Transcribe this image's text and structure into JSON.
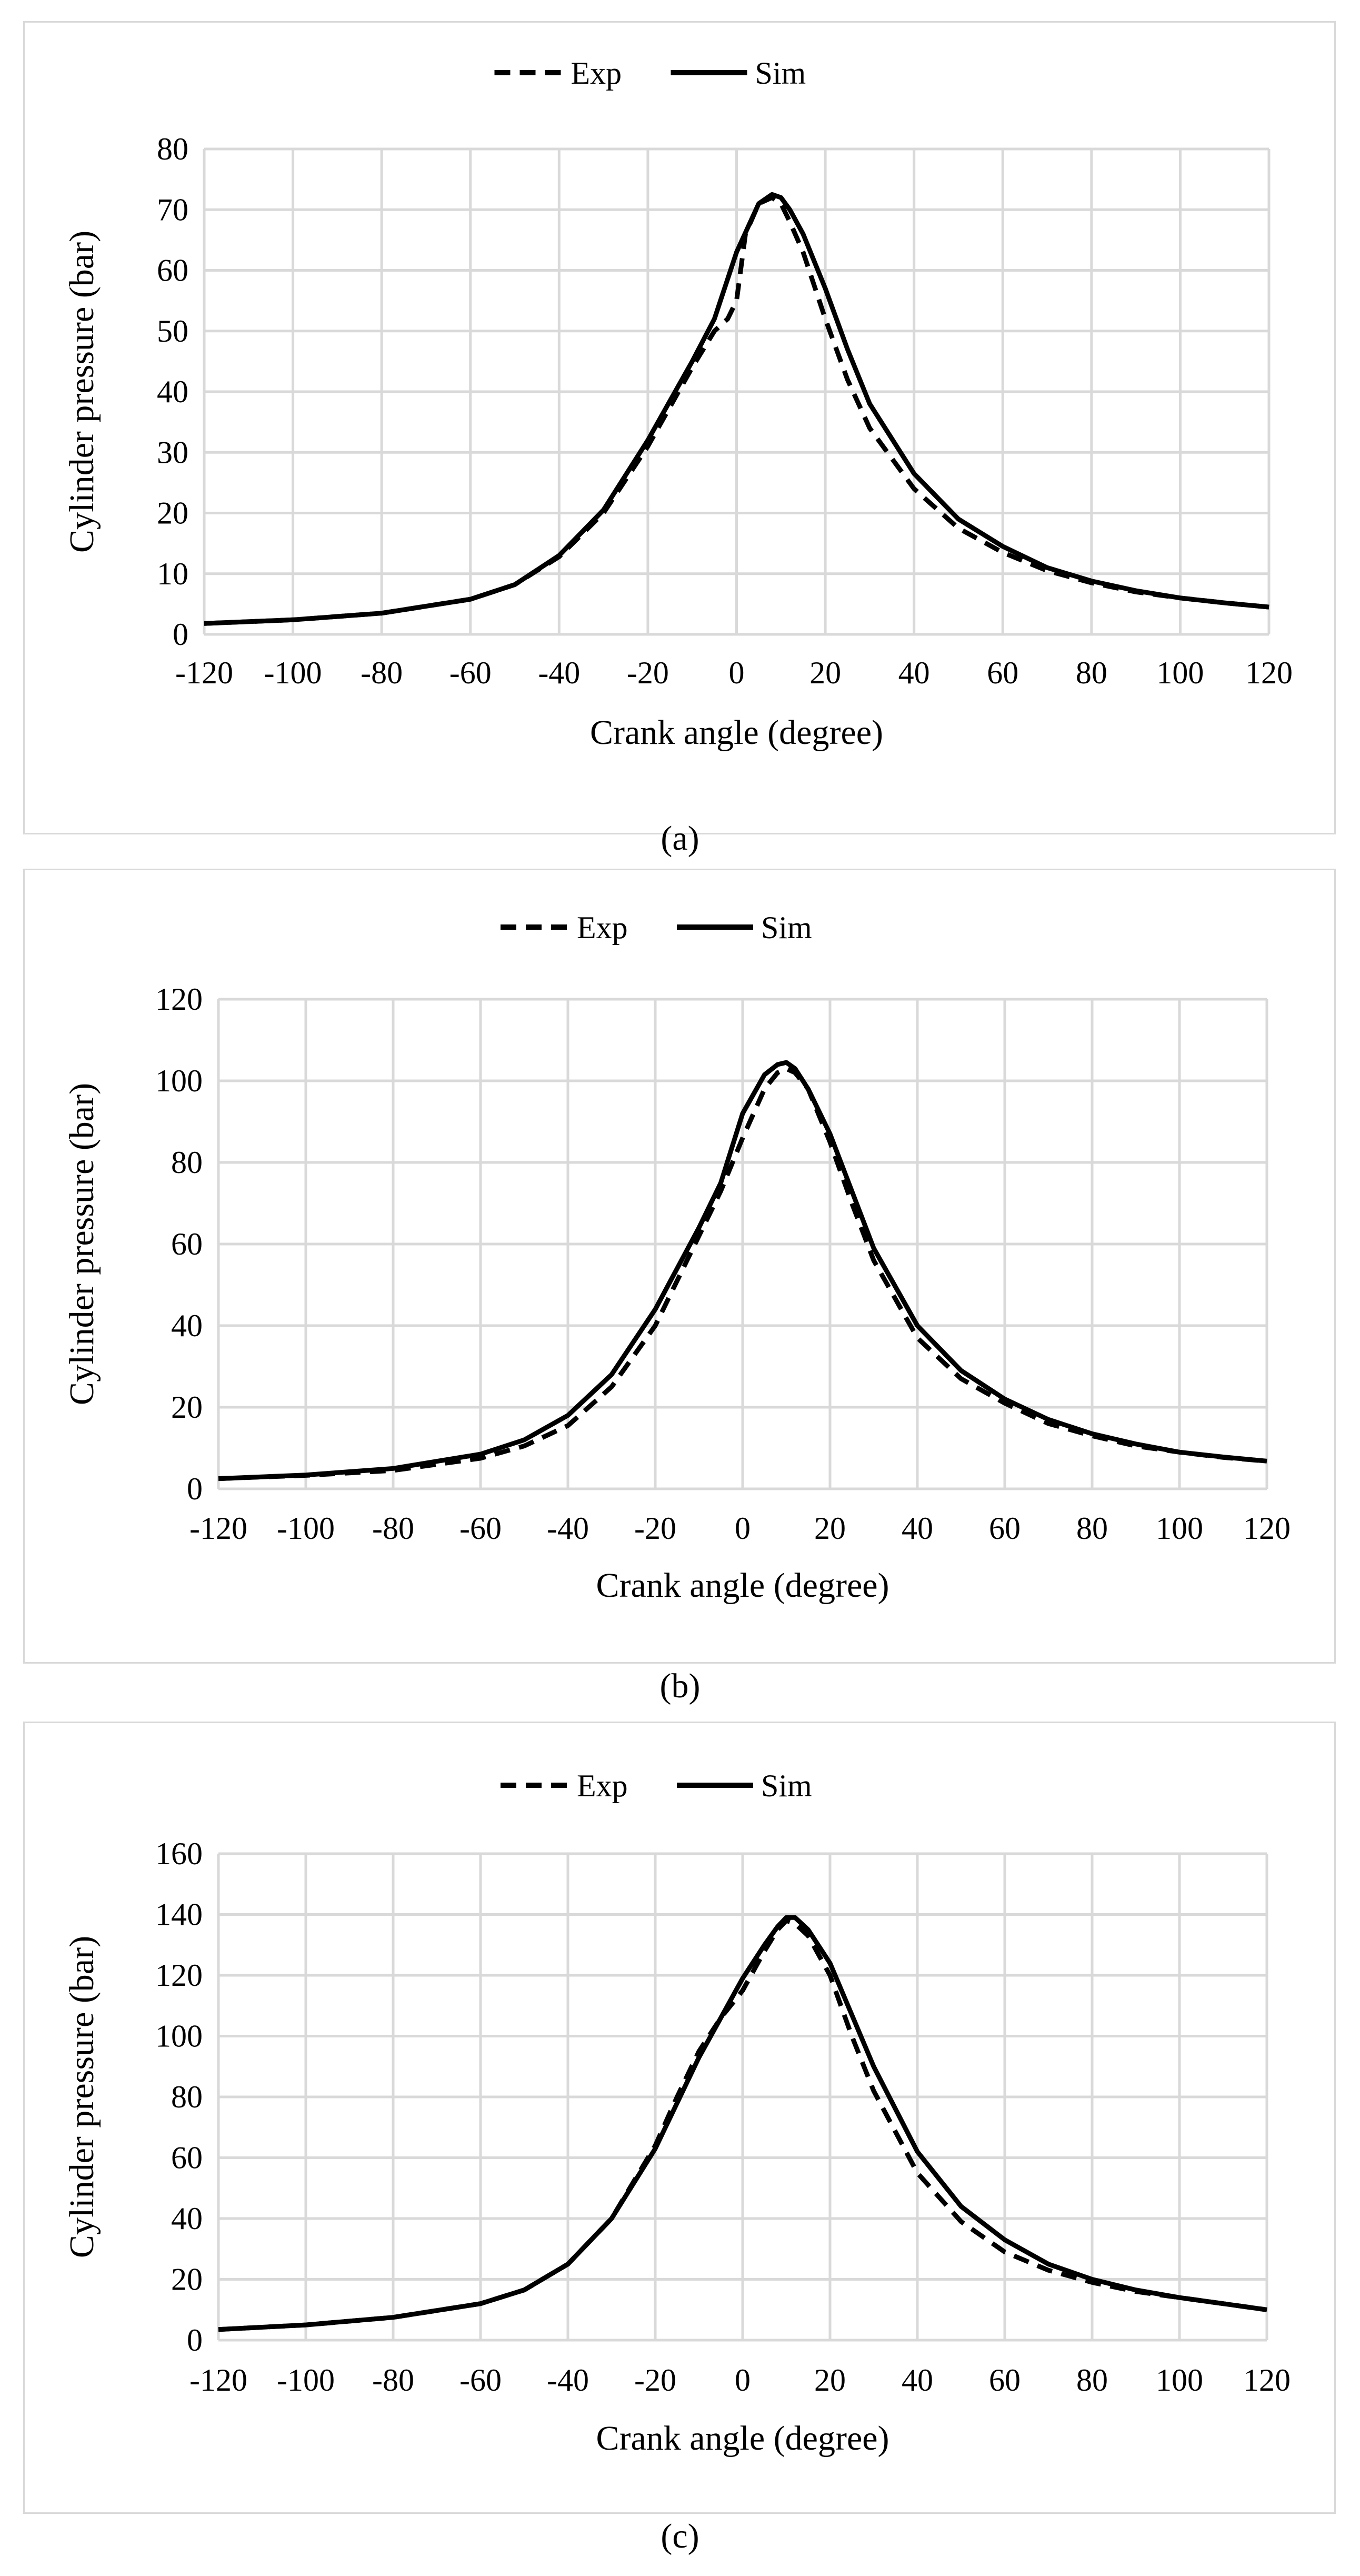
{
  "chart_data": [
    {
      "type": "line",
      "caption": "(a)",
      "title": "",
      "xlabel": "Crank angle (degree)",
      "ylabel": "Cylinder pressure (bar)",
      "xlim": [
        -120,
        120
      ],
      "ylim": [
        0,
        80
      ],
      "xticks": [
        -120,
        -100,
        -80,
        -60,
        -40,
        -20,
        0,
        20,
        40,
        60,
        80,
        100,
        120
      ],
      "yticks": [
        0,
        10,
        20,
        30,
        40,
        50,
        60,
        70,
        80
      ],
      "grid": true,
      "legend": "top-center",
      "series": [
        {
          "name": "Exp",
          "style": "dashed",
          "x": [
            -120,
            -100,
            -80,
            -60,
            -50,
            -40,
            -30,
            -20,
            -10,
            -5,
            -2,
            0,
            2,
            5,
            8,
            10,
            12,
            15,
            20,
            25,
            30,
            40,
            50,
            60,
            70,
            80,
            90,
            100,
            110,
            120
          ],
          "y": [
            1.8,
            2.4,
            3.5,
            5.8,
            8.2,
            12.8,
            20,
            31,
            44,
            50,
            52,
            55,
            66,
            71,
            72,
            71,
            68,
            63,
            52,
            42,
            34,
            24,
            17.5,
            13.5,
            10.5,
            8.5,
            7,
            6,
            5.2,
            4.5
          ]
        },
        {
          "name": "Sim",
          "style": "solid",
          "x": [
            -120,
            -100,
            -80,
            -60,
            -50,
            -40,
            -30,
            -20,
            -10,
            -5,
            0,
            5,
            8,
            10,
            12,
            15,
            20,
            25,
            30,
            40,
            50,
            60,
            70,
            80,
            90,
            100,
            110,
            120
          ],
          "y": [
            1.8,
            2.4,
            3.5,
            5.8,
            8.2,
            13,
            20.5,
            32,
            45,
            52,
            63,
            71,
            72.5,
            72,
            70,
            66,
            57,
            47,
            38,
            26.5,
            19,
            14.5,
            11,
            8.8,
            7.2,
            6,
            5.2,
            4.5
          ]
        }
      ]
    },
    {
      "type": "line",
      "caption": "(b)",
      "title": "",
      "xlabel": "Crank angle (degree)",
      "ylabel": "Cylinder pressure (bar)",
      "xlim": [
        -120,
        120
      ],
      "ylim": [
        0,
        120
      ],
      "xticks": [
        -120,
        -100,
        -80,
        -60,
        -40,
        -20,
        0,
        20,
        40,
        60,
        80,
        100,
        120
      ],
      "yticks": [
        0,
        20,
        40,
        60,
        80,
        100,
        120
      ],
      "grid": true,
      "legend": "top-center",
      "series": [
        {
          "name": "Exp",
          "style": "dashed",
          "x": [
            -120,
            -100,
            -80,
            -60,
            -50,
            -40,
            -30,
            -20,
            -10,
            -5,
            0,
            5,
            8,
            10,
            12,
            15,
            20,
            25,
            30,
            40,
            50,
            60,
            70,
            80,
            90,
            100,
            110,
            120
          ],
          "y": [
            2.5,
            3.3,
            4.5,
            7.5,
            10.5,
            15.5,
            25,
            40,
            62,
            73,
            86,
            98,
            102,
            103,
            102,
            98,
            85,
            70,
            56,
            37,
            27,
            21,
            16,
            13,
            10.5,
            9,
            7.7,
            6.8
          ]
        },
        {
          "name": "Sim",
          "style": "solid",
          "x": [
            -120,
            -100,
            -80,
            -60,
            -50,
            -40,
            -30,
            -20,
            -10,
            -5,
            0,
            5,
            8,
            10,
            12,
            15,
            20,
            25,
            30,
            40,
            50,
            60,
            70,
            80,
            90,
            100,
            110,
            120
          ],
          "y": [
            2.5,
            3.4,
            5,
            8.5,
            12,
            18,
            28,
            44,
            64,
            75,
            92,
            101.5,
            104,
            104.5,
            103,
            98,
            87,
            73,
            59,
            40,
            29,
            22,
            17,
            13.5,
            11,
            9,
            7.8,
            6.8
          ]
        }
      ]
    },
    {
      "type": "line",
      "caption": "(c)",
      "title": "",
      "xlabel": "Crank angle (degree)",
      "ylabel": "Cylinder pressure (bar)",
      "xlim": [
        -120,
        120
      ],
      "ylim": [
        0,
        160
      ],
      "xticks": [
        -120,
        -100,
        -80,
        -60,
        -40,
        -20,
        0,
        20,
        40,
        60,
        80,
        100,
        120
      ],
      "yticks": [
        0,
        20,
        40,
        60,
        80,
        100,
        120,
        140,
        160
      ],
      "grid": true,
      "legend": "top-center",
      "series": [
        {
          "name": "Exp",
          "style": "dashed",
          "x": [
            -120,
            -100,
            -80,
            -60,
            -50,
            -40,
            -30,
            -20,
            -15,
            -10,
            -5,
            0,
            5,
            8,
            10,
            12,
            15,
            20,
            25,
            30,
            40,
            50,
            60,
            70,
            80,
            90,
            100,
            110,
            120
          ],
          "y": [
            3.5,
            5,
            7.5,
            12,
            16.5,
            25,
            40,
            64,
            80,
            95,
            106,
            115,
            128,
            135,
            138,
            137,
            133,
            120,
            100,
            82,
            55,
            39,
            29,
            23,
            19,
            16,
            14,
            12,
            10
          ]
        },
        {
          "name": "Sim",
          "style": "solid",
          "x": [
            -120,
            -100,
            -80,
            -60,
            -50,
            -40,
            -30,
            -20,
            -15,
            -10,
            -5,
            0,
            5,
            8,
            10,
            12,
            15,
            20,
            25,
            30,
            40,
            50,
            60,
            70,
            80,
            90,
            100,
            110,
            120
          ],
          "y": [
            3.5,
            5,
            7.5,
            12,
            16.5,
            25,
            40,
            63,
            78,
            93,
            106,
            119,
            130,
            136,
            139,
            139,
            135,
            124,
            107,
            90,
            62,
            44,
            33,
            25,
            20,
            16.5,
            14,
            12,
            10
          ]
        }
      ]
    }
  ]
}
